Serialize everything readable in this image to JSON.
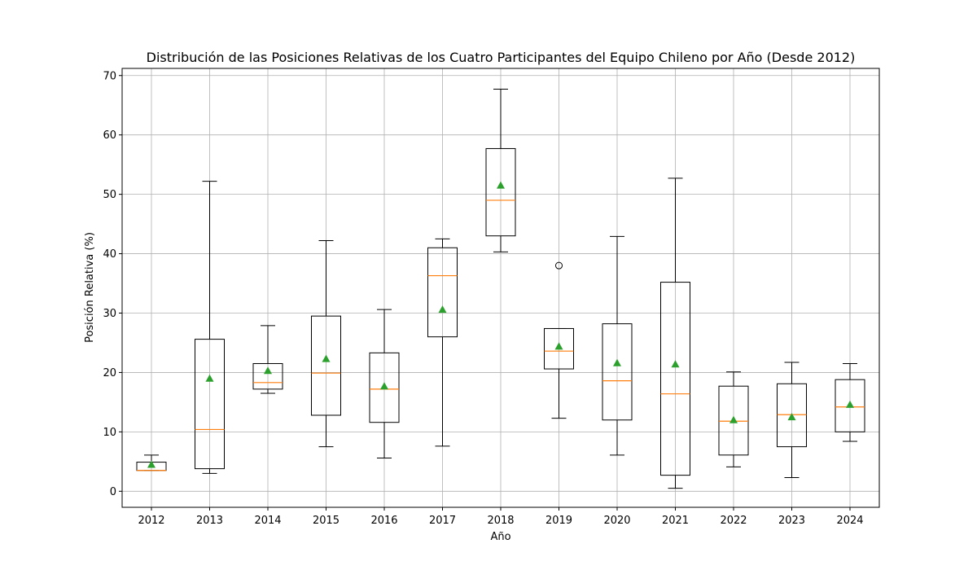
{
  "chart_data": {
    "type": "boxplot",
    "title": "Distribución de las Posiciones Relativas de los Cuatro Participantes del Equipo Chileno por Año (Desde 2012)",
    "xlabel": "Año",
    "ylabel": "Posición Relativa (%)",
    "ylim": [
      -2.7,
      71.2
    ],
    "yticks": [
      0,
      10,
      20,
      30,
      40,
      50,
      60,
      70
    ],
    "grid": true,
    "colors": {
      "box": "#000000",
      "median": "#ff7f0e",
      "mean": "#2ca02c",
      "grid": "#b0b0b0"
    },
    "categories": [
      "2012",
      "2013",
      "2014",
      "2015",
      "2016",
      "2017",
      "2018",
      "2019",
      "2020",
      "2021",
      "2022",
      "2023",
      "2024"
    ],
    "boxes": [
      {
        "min": 3.5,
        "q1": 3.5,
        "median": 3.5,
        "q3": 4.9,
        "max": 6.1,
        "mean": 4.5,
        "outliers": []
      },
      {
        "min": 3.0,
        "q1": 3.8,
        "median": 10.4,
        "q3": 25.6,
        "max": 52.2,
        "mean": 19.0,
        "outliers": []
      },
      {
        "min": 16.5,
        "q1": 17.2,
        "median": 18.3,
        "q3": 21.5,
        "max": 27.9,
        "mean": 20.3,
        "outliers": []
      },
      {
        "min": 7.5,
        "q1": 12.8,
        "median": 19.9,
        "q3": 29.5,
        "max": 42.2,
        "mean": 22.3,
        "outliers": []
      },
      {
        "min": 5.6,
        "q1": 11.6,
        "median": 17.2,
        "q3": 23.3,
        "max": 30.6,
        "mean": 17.7,
        "outliers": []
      },
      {
        "min": 7.6,
        "q1": 26.0,
        "median": 36.3,
        "q3": 41.0,
        "max": 42.5,
        "mean": 30.6,
        "outliers": []
      },
      {
        "min": 40.3,
        "q1": 43.0,
        "median": 49.0,
        "q3": 57.7,
        "max": 67.7,
        "mean": 51.5,
        "outliers": []
      },
      {
        "min": 12.3,
        "q1": 20.6,
        "median": 23.6,
        "q3": 27.4,
        "max": 27.4,
        "mean": 24.4,
        "outliers": [
          38.0
        ]
      },
      {
        "min": 6.1,
        "q1": 12.0,
        "median": 18.6,
        "q3": 28.2,
        "max": 42.9,
        "mean": 21.6,
        "outliers": []
      },
      {
        "min": 0.5,
        "q1": 2.7,
        "median": 16.4,
        "q3": 35.2,
        "max": 52.7,
        "mean": 21.4,
        "outliers": []
      },
      {
        "min": 4.1,
        "q1": 6.1,
        "median": 11.8,
        "q3": 17.7,
        "max": 20.1,
        "mean": 12.0,
        "outliers": []
      },
      {
        "min": 2.3,
        "q1": 7.5,
        "median": 12.9,
        "q3": 18.1,
        "max": 21.7,
        "mean": 12.5,
        "outliers": []
      },
      {
        "min": 8.4,
        "q1": 10.0,
        "median": 14.2,
        "q3": 18.8,
        "max": 21.5,
        "mean": 14.6,
        "outliers": []
      }
    ]
  }
}
